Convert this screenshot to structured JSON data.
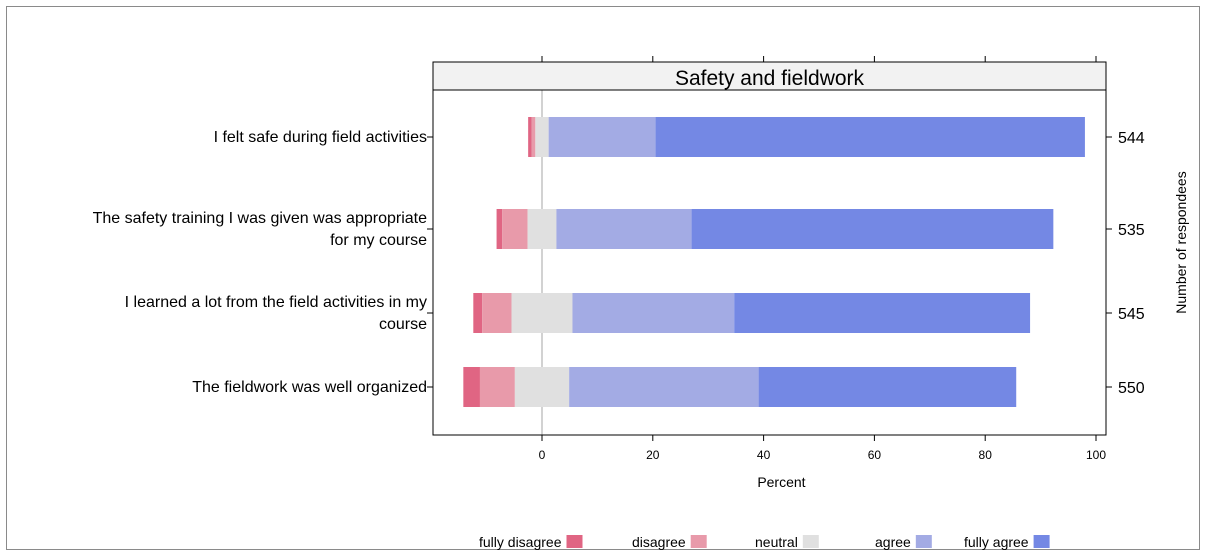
{
  "chart_data": {
    "type": "bar",
    "orientation": "horizontal",
    "stacked": "diverging",
    "title": "Safety and fieldwork",
    "xlabel": "Percent",
    "right_axis_label": "Number of respondees",
    "xlim": [
      -15,
      100
    ],
    "xticks": [
      0,
      20,
      40,
      60,
      80,
      100
    ],
    "grid": false,
    "legend_position": "bottom",
    "categories": [
      [
        "I felt safe during field activities"
      ],
      [
        "The safety training I was given was appropriate",
        "for my course"
      ],
      [
        "I learned a lot from the field activities in my",
        "course"
      ],
      [
        "The fieldwork was well organized"
      ]
    ],
    "respondents": [
      "544",
      "535",
      "545",
      "550"
    ],
    "series": [
      {
        "name": "fully disagree",
        "color": "#e06583",
        "values": [
          0.6,
          1.0,
          1.6,
          3.0
        ]
      },
      {
        "name": "disagree",
        "color": "#e89aaa",
        "values": [
          0.7,
          4.6,
          5.3,
          6.3
        ]
      },
      {
        "name": "neutral",
        "color": "#e0e0e0",
        "values": [
          2.4,
          5.2,
          11.0,
          9.8
        ]
      },
      {
        "name": "agree",
        "color": "#a3abe4",
        "values": [
          19.3,
          24.4,
          29.2,
          34.2
        ]
      },
      {
        "name": "fully agree",
        "color": "#7488e4",
        "values": [
          77.5,
          65.3,
          53.4,
          46.5
        ]
      }
    ]
  }
}
